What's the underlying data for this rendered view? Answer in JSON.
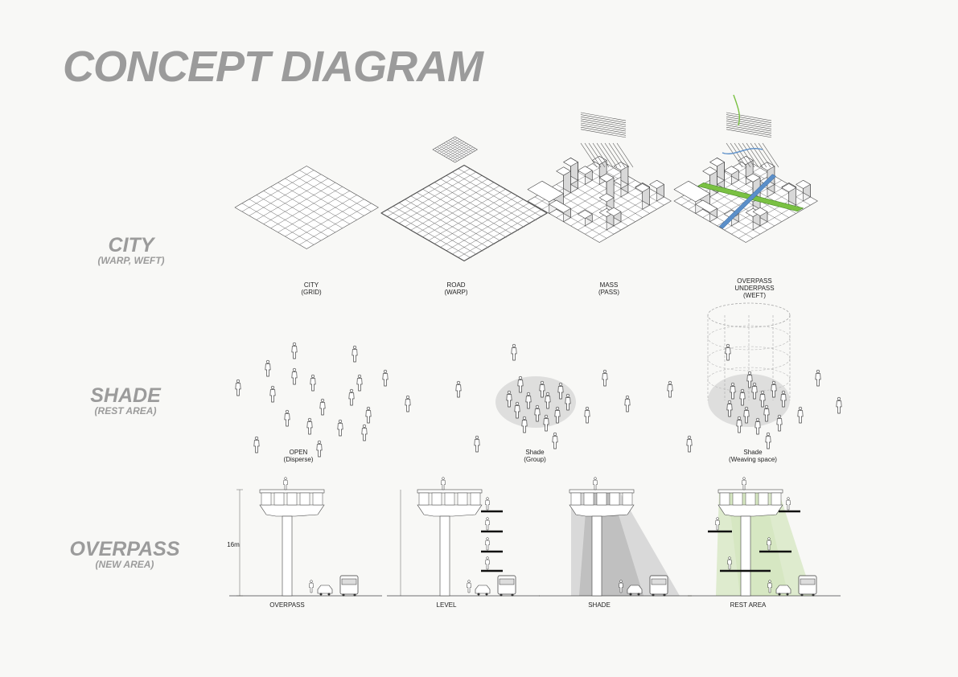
{
  "title": "CONCEPT DIAGRAM",
  "rows": [
    {
      "title": "CITY",
      "subtitle": "(WARP, WEFT)"
    },
    {
      "title": "SHADE",
      "subtitle": "(REST AREA)"
    },
    {
      "title": "OVERPASS",
      "subtitle": "(NEW AREA)"
    }
  ],
  "city_captions": [
    {
      "line1": "CITY",
      "line2": "(GRID)",
      "line3": ""
    },
    {
      "line1": "ROAD",
      "line2": "(WARP)",
      "line3": ""
    },
    {
      "line1": "MASS",
      "line2": "(PASS)",
      "line3": ""
    },
    {
      "line1": "OVERPASS",
      "line2": "UNDERPASS",
      "line3": "(WEFT)"
    }
  ],
  "shade_captions": [
    {
      "line1": "OPEN",
      "line2": "(Disperse)"
    },
    {
      "line1": "Shade",
      "line2": "(Group)"
    },
    {
      "line1": "Shade",
      "line2": "(Weaving space)"
    }
  ],
  "overpass_captions": [
    "OVERPASS",
    "LEVEL",
    "SHADE",
    "REST AREA"
  ],
  "height_label": "16m",
  "colors": {
    "title": "#9b9b9b",
    "green": "#7ac143",
    "blue": "#5b8fc9",
    "shade": "#c9c9c9",
    "rest_green": "#cfe3b8"
  }
}
